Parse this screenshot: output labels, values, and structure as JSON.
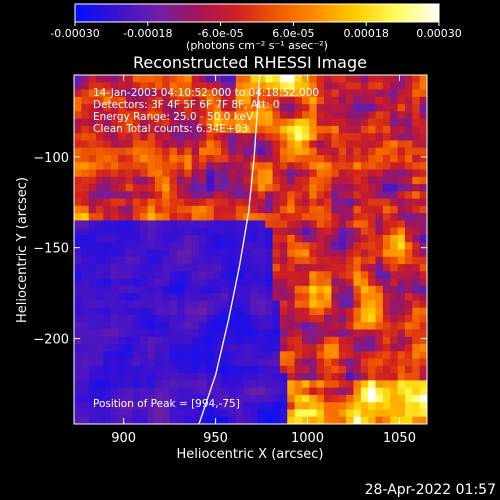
{
  "chart_data": {
    "type": "heatmap",
    "title": "Reconstructed RHESSI Image",
    "xlabel": "Heliocentric X (arcsec)",
    "ylabel": "Heliocentric Y (arcsec)",
    "xlim": [
      873,
      1065
    ],
    "ylim": [
      -247,
      -55
    ],
    "xticks": [
      900,
      950,
      1000,
      1050
    ],
    "yticks": [
      -100,
      -150,
      -200
    ],
    "colorbar": {
      "range": [
        -0.0003,
        0.0003
      ],
      "tick_values": [
        -0.0003,
        -0.00018,
        -6e-05,
        6e-05,
        0.00018,
        0.0003
      ],
      "tick_labels": [
        "-0.00030",
        "-0.00018",
        "-6.0e-05",
        "6.0e-05",
        "0.00018",
        "0.00030"
      ],
      "unit_label": "(photons cm⁻² s⁻¹ asec⁻²)",
      "colormap": [
        "#0010ff",
        "#3a10d0",
        "#6a20a8",
        "#a0145a",
        "#d02020",
        "#f05a00",
        "#ff9000",
        "#ffd000",
        "#ffff60",
        "#ffffff"
      ]
    },
    "annotations": {
      "time_range": "14-Jan-2003 04:10:52.000 to 04:18:52.000",
      "detectors": "Detectors: 3F 4F 5F 6F 7F 8F, Att: 0",
      "energy_range": "Energy Range: 25.0 - 50.0 keV",
      "method_counts": "Clean    Total counts: 6.34E+03",
      "peak": "Position of Peak = [994,-75]"
    },
    "limb_curve": [
      [
        941,
        -247
      ],
      [
        950,
        -220
      ],
      [
        957,
        -190
      ],
      [
        963,
        -160
      ],
      [
        968,
        -130
      ],
      [
        971,
        -100
      ],
      [
        973,
        -70
      ],
      [
        974,
        -55
      ]
    ],
    "grid": false
  },
  "footer": {
    "date": "28-Apr-2022 01:57"
  }
}
